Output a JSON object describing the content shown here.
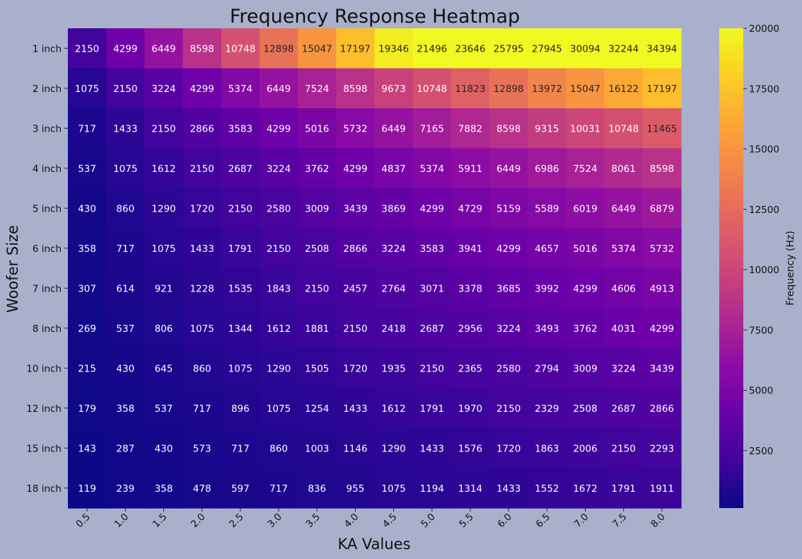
{
  "chart_data": {
    "type": "heatmap",
    "title": "Frequency Response Heatmap",
    "xlabel": "KA Values",
    "ylabel": "Woofer Size",
    "x_categories": [
      "0.5",
      "1.0",
      "1.5",
      "2.0",
      "2.5",
      "3.0",
      "3.5",
      "4.0",
      "4.5",
      "5.0",
      "5.5",
      "6.0",
      "6.5",
      "7.0",
      "7.5",
      "8.0"
    ],
    "y_categories": [
      "1 inch",
      "2 inch",
      "3 inch",
      "4 inch",
      "5 inch",
      "6 inch",
      "7 inch",
      "8 inch",
      "10 inch",
      "12 inch",
      "15 inch",
      "18 inch"
    ],
    "values": [
      [
        2150,
        4299,
        6449,
        8598,
        10748,
        12898,
        15047,
        17197,
        19346,
        21496,
        23646,
        25795,
        27945,
        30094,
        32244,
        34394
      ],
      [
        1075,
        2150,
        3224,
        4299,
        5374,
        6449,
        7524,
        8598,
        9673,
        10748,
        11823,
        12898,
        13972,
        15047,
        16122,
        17197
      ],
      [
        717,
        1433,
        2150,
        2866,
        3583,
        4299,
        5016,
        5732,
        6449,
        7165,
        7882,
        8598,
        9315,
        10031,
        10748,
        11465
      ],
      [
        537,
        1075,
        1612,
        2150,
        2687,
        3224,
        3762,
        4299,
        4837,
        5374,
        5911,
        6449,
        6986,
        7524,
        8061,
        8598
      ],
      [
        430,
        860,
        1290,
        1720,
        2150,
        2580,
        3009,
        3439,
        3869,
        4299,
        4729,
        5159,
        5589,
        6019,
        6449,
        6879
      ],
      [
        358,
        717,
        1075,
        1433,
        1791,
        2150,
        2508,
        2866,
        3224,
        3583,
        3941,
        4299,
        4657,
        5016,
        5374,
        5732
      ],
      [
        307,
        614,
        921,
        1228,
        1535,
        1843,
        2150,
        2457,
        2764,
        3071,
        3378,
        3685,
        3992,
        4299,
        4606,
        4913
      ],
      [
        269,
        537,
        806,
        1075,
        1344,
        1612,
        1881,
        2150,
        2418,
        2687,
        2956,
        3224,
        3493,
        3762,
        4031,
        4299
      ],
      [
        215,
        430,
        645,
        860,
        1075,
        1290,
        1505,
        1720,
        1935,
        2150,
        2365,
        2580,
        2794,
        3009,
        3224,
        3439
      ],
      [
        179,
        358,
        537,
        717,
        896,
        1075,
        1254,
        1433,
        1612,
        1791,
        1970,
        2150,
        2329,
        2508,
        2687,
        2866
      ],
      [
        143,
        287,
        430,
        573,
        717,
        860,
        1003,
        1146,
        1290,
        1433,
        1576,
        1720,
        1863,
        2006,
        2150,
        2293
      ],
      [
        119,
        239,
        358,
        478,
        597,
        717,
        836,
        955,
        1075,
        1194,
        1314,
        1433,
        1552,
        1672,
        1791,
        1911
      ]
    ],
    "colorbar": {
      "label": "Frequency (Hz)",
      "vmin": 119,
      "vmax": 20000,
      "ticks": [
        2500,
        5000,
        7500,
        10000,
        12500,
        15000,
        17500,
        20000
      ],
      "colormap": "plasma"
    },
    "background_color": "#a8b0cc",
    "grid": false
  }
}
